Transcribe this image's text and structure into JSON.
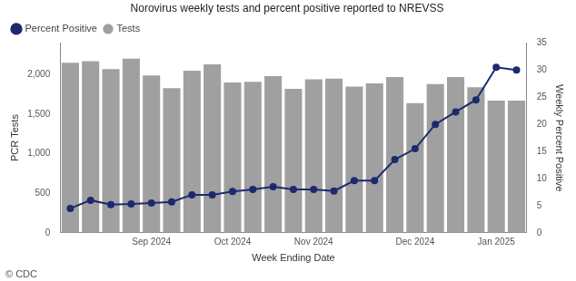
{
  "chart_data": {
    "type": "bar",
    "title": "Norovirus weekly tests and percent positive reported to NREVSS",
    "x_label": "Week Ending Date",
    "y_label": "PCR Tests",
    "y2_label": "Weekly Percent Positive",
    "annotations": [
      "© CDC"
    ],
    "categories": [
      null,
      null,
      null,
      null,
      "Sep 2024",
      null,
      null,
      null,
      "Oct 2024",
      null,
      null,
      null,
      "Nov 2024",
      null,
      null,
      null,
      null,
      "Dec 2024",
      null,
      null,
      null,
      "Jan 2025",
      null
    ],
    "series": [
      {
        "name": "Tests",
        "type": "bar",
        "color": "#a0a0a0",
        "values": [
          2150,
          2170,
          2070,
          2200,
          1990,
          1830,
          2050,
          2130,
          1900,
          1910,
          1980,
          1820,
          1940,
          1950,
          1850,
          1890,
          1970,
          1640,
          1880,
          1970,
          1840,
          1670,
          1670
        ]
      },
      {
        "name": "Percent Positive",
        "type": "line",
        "color": "#1c2a6e",
        "marker": "circle",
        "axis": "y2",
        "values": [
          4.5,
          6,
          5.2,
          5.3,
          5.5,
          5.7,
          7,
          7,
          7.6,
          8,
          8.5,
          8,
          8,
          7.7,
          9.6,
          9.6,
          13.5,
          15.5,
          20,
          22.3,
          24.5,
          30.5,
          30
        ]
      }
    ],
    "ylim": [
      0,
      2400
    ],
    "yticks": [
      0,
      500,
      1000,
      1500,
      2000
    ],
    "y2lim": [
      0,
      35
    ],
    "y2ticks": [
      0,
      5,
      10,
      15,
      20,
      25,
      30,
      35
    ],
    "grid": false,
    "legend": "top-left"
  }
}
